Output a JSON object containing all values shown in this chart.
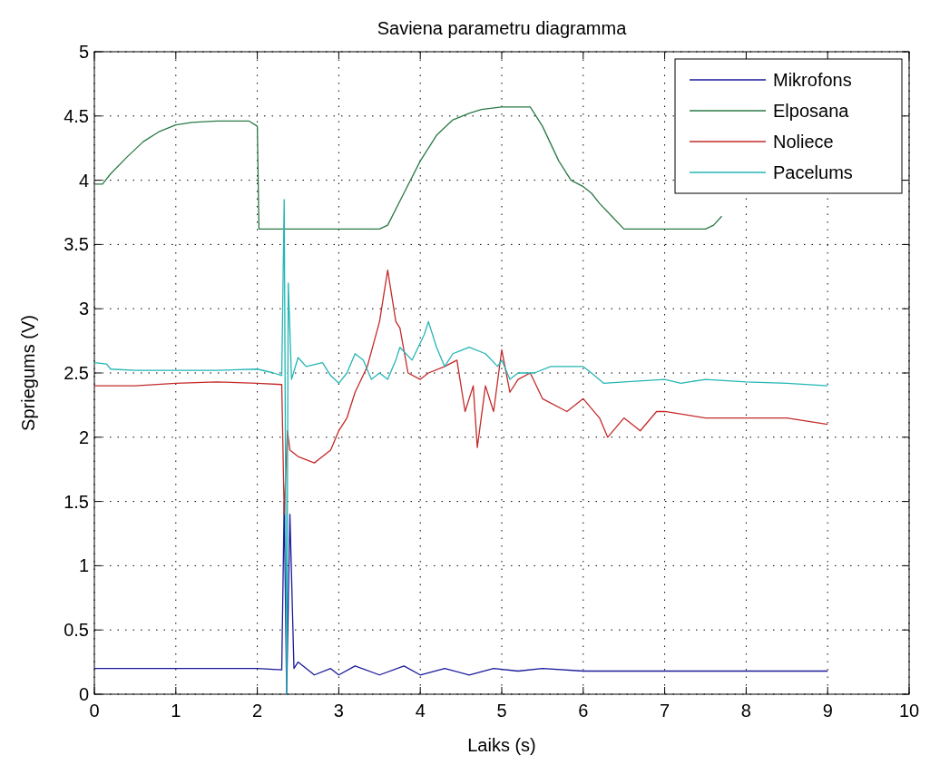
{
  "chart_data": {
    "type": "line",
    "title": "Saviena parametru diagramma",
    "xlabel": "Laiks (s)",
    "ylabel": "Spriegums (V)",
    "xlim": [
      0,
      10
    ],
    "xticks": [
      0,
      1,
      2,
      3,
      4,
      5,
      6,
      7,
      8,
      9,
      10
    ],
    "ylim": [
      0,
      5
    ],
    "yticks": [
      0,
      0.5,
      1,
      1.5,
      2,
      2.5,
      3,
      3.5,
      4,
      4.5,
      5
    ],
    "grid": true,
    "legend": "top right",
    "line_style": "solid",
    "series": [
      {
        "name": "Mikrofons",
        "color": "#1a1a9a",
        "x": [
          0,
          1,
          2,
          2.3,
          2.33,
          2.36,
          2.4,
          2.45,
          2.5,
          2.7,
          2.9,
          3,
          3.2,
          3.5,
          3.8,
          4,
          4.3,
          4.6,
          4.9,
          5.2,
          5.5,
          6,
          7,
          8,
          9
        ],
        "values": [
          0.2,
          0.2,
          0.2,
          0.19,
          1.5,
          0,
          1.4,
          0.2,
          0.25,
          0.15,
          0.2,
          0.15,
          0.22,
          0.15,
          0.22,
          0.15,
          0.2,
          0.15,
          0.2,
          0.18,
          0.2,
          0.18,
          0.18,
          0.18,
          0.18
        ]
      },
      {
        "name": "Elposana",
        "color": "#2a7a45",
        "x": [
          0,
          0.1,
          0.2,
          0.4,
          0.6,
          0.8,
          1,
          1.2,
          1.5,
          1.9,
          2,
          2.02,
          3,
          3.5,
          3.6,
          3.8,
          4,
          4.2,
          4.4,
          4.6,
          4.75,
          5,
          5.35,
          5.5,
          5.7,
          5.85,
          6,
          6.1,
          6.2,
          6.35,
          6.5,
          7,
          7.5,
          7.6,
          7.7
        ],
        "values": [
          3.97,
          3.97,
          4.05,
          4.18,
          4.3,
          4.38,
          4.43,
          4.45,
          4.46,
          4.46,
          4.42,
          3.62,
          3.62,
          3.62,
          3.65,
          3.9,
          4.15,
          4.35,
          4.47,
          4.52,
          4.55,
          4.57,
          4.57,
          4.42,
          4.15,
          4,
          3.95,
          3.9,
          3.82,
          3.72,
          3.62,
          3.62,
          3.62,
          3.65,
          3.72
        ]
      },
      {
        "name": "Noliece",
        "color": "#c42a2a",
        "x": [
          0,
          0.5,
          1,
          1.5,
          2,
          2.3,
          2.33,
          2.37,
          2.4,
          2.5,
          2.7,
          2.9,
          3,
          3.1,
          3.2,
          3.35,
          3.5,
          3.6,
          3.7,
          3.75,
          3.85,
          4,
          4.1,
          4.3,
          4.45,
          4.55,
          4.65,
          4.7,
          4.8,
          4.9,
          5,
          5.1,
          5.2,
          5.35,
          5.5,
          5.8,
          6,
          6.2,
          6.3,
          6.5,
          6.7,
          6.9,
          7,
          7.5,
          8,
          8.5,
          9
        ],
        "values": [
          2.4,
          2.4,
          2.42,
          2.43,
          2.42,
          2.41,
          1.4,
          2.05,
          1.9,
          1.85,
          1.8,
          1.9,
          2.05,
          2.15,
          2.35,
          2.55,
          2.9,
          3.3,
          2.9,
          2.85,
          2.5,
          2.45,
          2.5,
          2.55,
          2.6,
          2.2,
          2.4,
          1.92,
          2.4,
          2.2,
          2.68,
          2.35,
          2.45,
          2.5,
          2.3,
          2.2,
          2.3,
          2.15,
          2,
          2.15,
          2.05,
          2.2,
          2.2,
          2.15,
          2.15,
          2.15,
          2.1
        ]
      },
      {
        "name": "Pacelums",
        "color": "#25b5b5",
        "x": [
          0,
          0.15,
          0.2,
          0.5,
          1,
          1.5,
          2,
          2.2,
          2.3,
          2.33,
          2.36,
          2.38,
          2.42,
          2.5,
          2.6,
          2.8,
          2.9,
          3,
          3.1,
          3.2,
          3.3,
          3.4,
          3.5,
          3.6,
          3.7,
          3.75,
          3.9,
          4.05,
          4.1,
          4.2,
          4.3,
          4.4,
          4.6,
          4.8,
          4.95,
          5,
          5.1,
          5.2,
          5.4,
          5.6,
          6,
          6.1,
          6.25,
          6.5,
          7,
          7.2,
          7.5,
          8,
          8.5,
          9
        ],
        "values": [
          2.58,
          2.57,
          2.53,
          2.52,
          2.52,
          2.52,
          2.53,
          2.5,
          2.48,
          3.85,
          0,
          3.2,
          2.45,
          2.62,
          2.55,
          2.58,
          2.48,
          2.42,
          2.5,
          2.65,
          2.6,
          2.45,
          2.5,
          2.45,
          2.6,
          2.7,
          2.6,
          2.8,
          2.9,
          2.7,
          2.55,
          2.65,
          2.7,
          2.65,
          2.55,
          2.6,
          2.45,
          2.5,
          2.5,
          2.55,
          2.55,
          2.5,
          2.42,
          2.43,
          2.45,
          2.42,
          2.45,
          2.43,
          2.42,
          2.4
        ]
      }
    ]
  }
}
